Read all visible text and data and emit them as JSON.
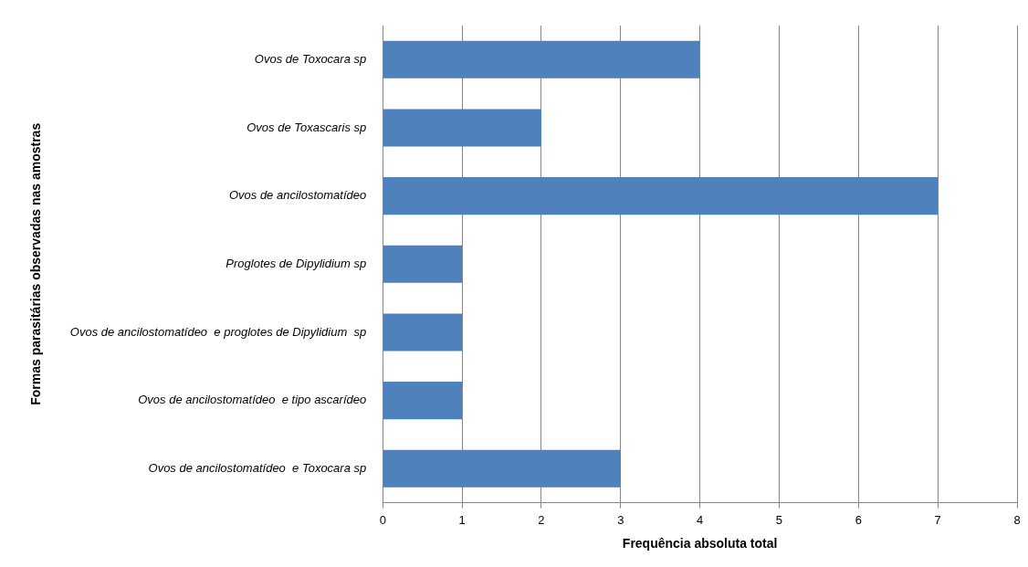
{
  "chart_data": {
    "type": "bar",
    "orientation": "horizontal",
    "xlabel": "Frequência absoluta total",
    "ylabel": "Formas parasitárias observadas nas amostras",
    "categories": [
      "Ovos de Toxocara sp",
      "Ovos de Toxascaris sp",
      "Ovos de ancilostomatídeo",
      "Proglotes de Dipylidium sp",
      "Ovos de ancilostomatídeo  e proglotes de Dipylidium  sp",
      "Ovos de ancilostomatídeo  e tipo ascarídeo",
      "Ovos de ancilostomatídeo  e Toxocara sp"
    ],
    "values": [
      4,
      2,
      7,
      1,
      1,
      1,
      3
    ],
    "color": "#4f81bd",
    "xlim": [
      0,
      8
    ],
    "xticks": [
      0,
      1,
      2,
      3,
      4,
      5,
      6,
      7,
      8
    ],
    "grid": "x",
    "legend": false
  }
}
